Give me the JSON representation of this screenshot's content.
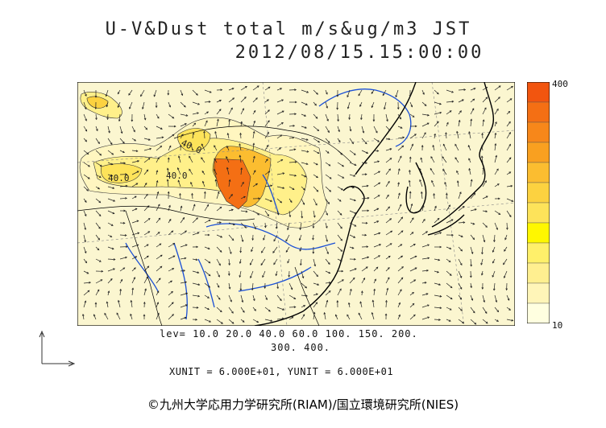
{
  "header": {
    "title_line1": "U-V&Dust total m/s&ug/m3 JST",
    "title_line2": "2012/08/15.15:00:00"
  },
  "colorbar": {
    "max_label": "400",
    "min_label": "10",
    "colors": [
      "#ffffe0",
      "#fff5b8",
      "#ffef90",
      "#fff06a",
      "#fff700",
      "#fde35a",
      "#fcd240",
      "#fbbd30",
      "#f9a020",
      "#f7871a",
      "#f46f14",
      "#f2550f"
    ]
  },
  "legend": {
    "levels_line1": "lev= 10.0 20.0 40.0 60.0 100. 150. 200.",
    "levels_line2": "300. 400."
  },
  "units_text": "XUNIT = 6.000E+01, YUNIT = 6.000E+01",
  "contour_labels": {
    "label_a": "40.0",
    "label_b": "40.0",
    "label_c": "40.0"
  },
  "copyright": "©九州大学応用力学研究所(RIAM)/国立環境研究所(NIES)",
  "colors": {
    "land_bg": "#fbf6d0",
    "coast": "#000000",
    "river": "#1a4fd6",
    "peak": "#f2550f"
  }
}
